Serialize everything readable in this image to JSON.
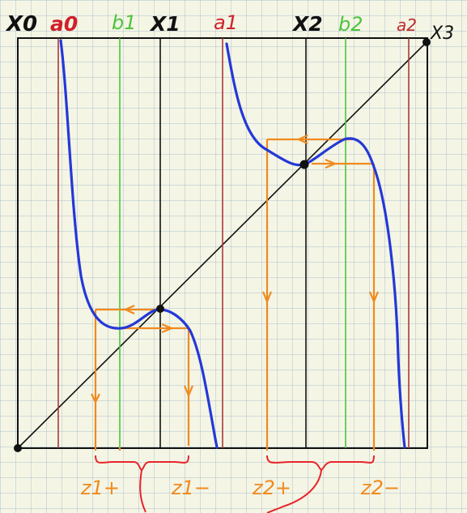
{
  "labels": {
    "x0": "X0",
    "a0": "a0",
    "b1": "b1",
    "x1": "X1",
    "a1": "a1",
    "x2": "X2",
    "b2": "b2",
    "a2": "a2",
    "x3": "X3",
    "z1_plus": "z1+",
    "z1_minus": "z1−",
    "z2_plus": "z2+",
    "z2_minus": "z2−"
  },
  "colors": {
    "frame": "#111111",
    "red_lines": "#a83a3a",
    "green_lines": "#49c63f",
    "black_lines": "#111111",
    "curve": "#2438d8",
    "orange": "#f08a1e",
    "brace": "#e8242a",
    "label_red": "#d0202a",
    "label_green": "#4cc43e",
    "label_black": "#111111",
    "label_orange": "#f08a1e"
  }
}
